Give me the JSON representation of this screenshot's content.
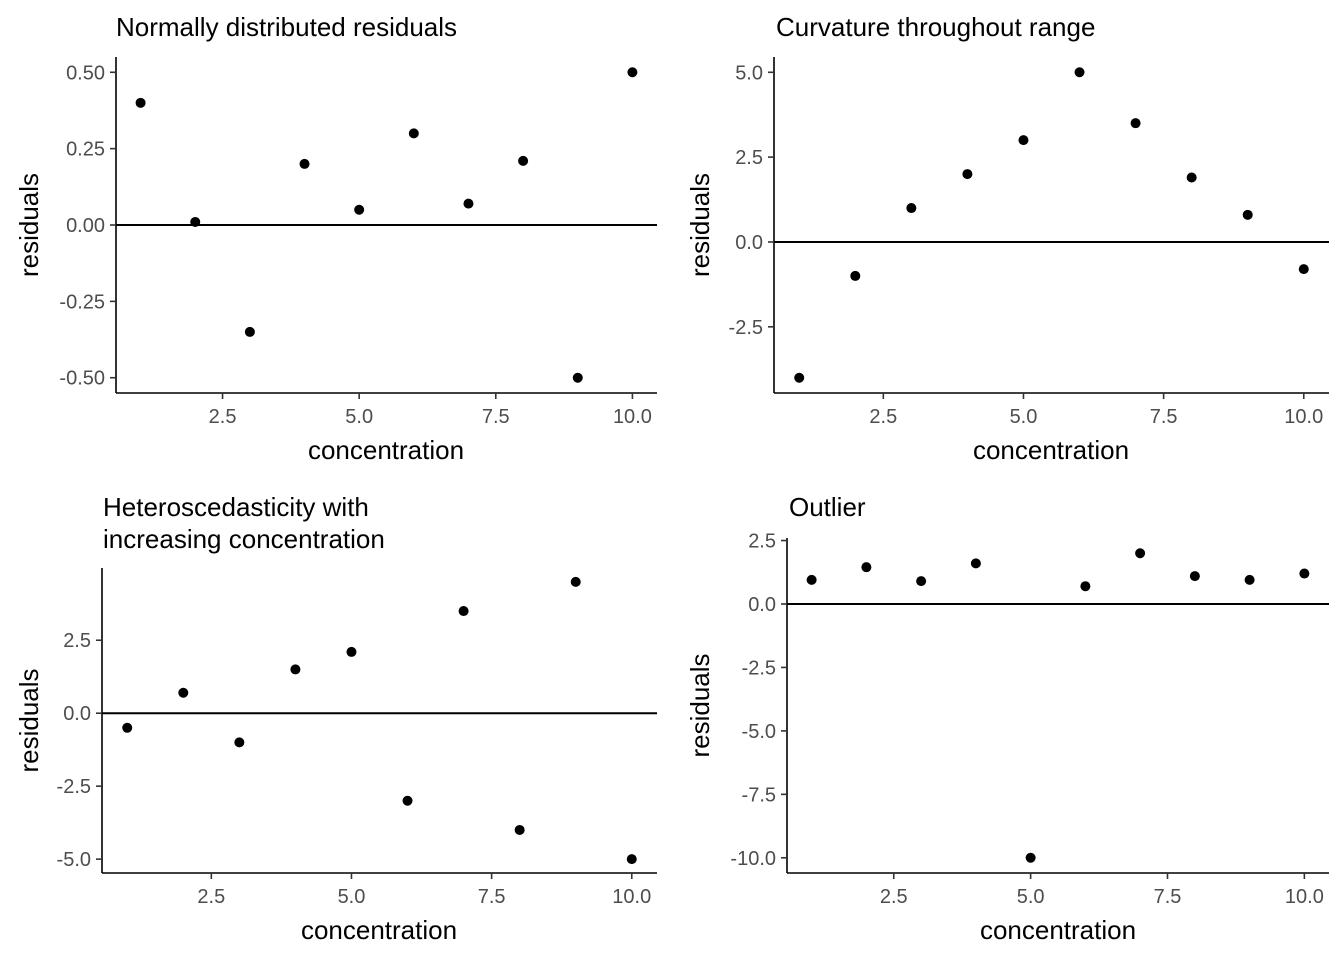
{
  "chart_data": [
    {
      "type": "scatter",
      "title_lines": [
        "Normally distributed residuals"
      ],
      "xlabel": "concentration",
      "ylabel": "residuals",
      "x": [
        1,
        2,
        3,
        4,
        5,
        6,
        7,
        8,
        9,
        10
      ],
      "y": [
        0.4,
        0.01,
        -0.35,
        0.2,
        0.05,
        0.3,
        0.07,
        0.21,
        -0.5,
        0.5
      ],
      "xlim": [
        0.55,
        10.45
      ],
      "ylim": [
        -0.55,
        0.55
      ],
      "xticks": [
        2.5,
        5.0,
        7.5,
        10.0
      ],
      "xtick_labels": [
        "2.5",
        "5.0",
        "7.5",
        "10.0"
      ],
      "yticks": [
        -0.5,
        -0.25,
        0.0,
        0.25,
        0.5
      ],
      "ytick_labels": [
        "-0.50",
        "-0.25",
        "0.00",
        "0.25",
        "0.50"
      ],
      "hline": 0,
      "grid": false
    },
    {
      "type": "scatter",
      "title_lines": [
        "Curvature throughout range"
      ],
      "xlabel": "concentration",
      "ylabel": "residuals",
      "x": [
        1,
        2,
        3,
        4,
        5,
        6,
        7,
        8,
        9,
        10
      ],
      "y": [
        -4.0,
        -1.0,
        1.0,
        2.0,
        3.0,
        5.0,
        3.5,
        1.9,
        0.8,
        -0.8
      ],
      "xlim": [
        0.55,
        10.45
      ],
      "ylim": [
        -4.45,
        5.45
      ],
      "xticks": [
        2.5,
        5.0,
        7.5,
        10.0
      ],
      "xtick_labels": [
        "2.5",
        "5.0",
        "7.5",
        "10.0"
      ],
      "yticks": [
        -2.5,
        0.0,
        2.5,
        5.0
      ],
      "ytick_labels": [
        "-2.5",
        "0.0",
        "2.5",
        "5.0"
      ],
      "hline": 0,
      "grid": false
    },
    {
      "type": "scatter",
      "title_lines": [
        "Heteroscedasticity with",
        "increasing concentration"
      ],
      "xlabel": "concentration",
      "ylabel": "residuals",
      "x": [
        1,
        2,
        3,
        4,
        5,
        6,
        7,
        8,
        9,
        10
      ],
      "y": [
        -0.5,
        0.7,
        -1.0,
        1.5,
        2.1,
        -3.0,
        3.5,
        -4.0,
        4.5,
        -5.0
      ],
      "xlim": [
        0.55,
        10.45
      ],
      "ylim": [
        -5.475,
        4.975
      ],
      "xticks": [
        2.5,
        5.0,
        7.5,
        10.0
      ],
      "xtick_labels": [
        "2.5",
        "5.0",
        "7.5",
        "10.0"
      ],
      "yticks": [
        -5.0,
        -2.5,
        0.0,
        2.5
      ],
      "ytick_labels": [
        "-5.0",
        "-2.5",
        "0.0",
        "2.5"
      ],
      "hline": 0,
      "grid": false
    },
    {
      "type": "scatter",
      "title_lines": [
        "Outlier"
      ],
      "xlabel": "concentration",
      "ylabel": "residuals",
      "x": [
        1,
        2,
        3,
        4,
        5,
        6,
        7,
        8,
        9,
        10
      ],
      "y": [
        0.95,
        1.45,
        0.9,
        1.6,
        -10.0,
        0.7,
        2.0,
        1.1,
        0.95,
        1.2
      ],
      "xlim": [
        0.55,
        10.45
      ],
      "ylim": [
        -10.6,
        2.6
      ],
      "xticks": [
        2.5,
        5.0,
        7.5,
        10.0
      ],
      "xtick_labels": [
        "2.5",
        "5.0",
        "7.5",
        "10.0"
      ],
      "yticks": [
        -10.0,
        -7.5,
        -5.0,
        -2.5,
        0.0,
        2.5
      ],
      "ytick_labels": [
        "-10.0",
        "-7.5",
        "-5.0",
        "-2.5",
        "0.0",
        "2.5"
      ],
      "hline": 0,
      "grid": false
    }
  ]
}
